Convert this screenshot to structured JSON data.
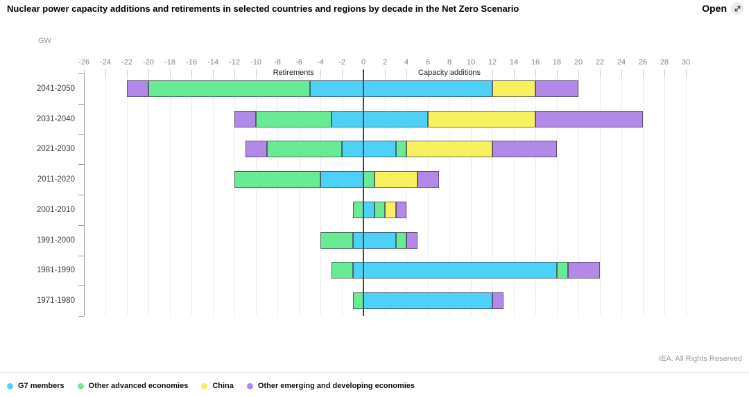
{
  "header": {
    "open_label": "Open"
  },
  "footer": {
    "copyright": "IEA. All Rights Reserved"
  },
  "chart_data": {
    "type": "bar",
    "variant": "diverging-stacked-horizontal",
    "title": "Nuclear power capacity additions and retirements in selected countries and regions by decade in the Net Zero Scenario",
    "unit": "GW",
    "xlim": [
      -26,
      30
    ],
    "x_step": 2,
    "grid": true,
    "legend_position": "bottom",
    "annotations": {
      "unit": "GW",
      "left": "Retirements",
      "right": "Capacity additions"
    },
    "categories": [
      "2041-2050",
      "2031-2040",
      "2021-2030",
      "2011-2020",
      "2001-2010",
      "1991-2000",
      "1981-1990",
      "1971-1980"
    ],
    "series": [
      {
        "name": "G7 members",
        "color": "#4DD1F7",
        "retirements": [
          -5,
          -3,
          -2,
          -4,
          0,
          -1,
          -1,
          0
        ],
        "additions": [
          12,
          6,
          3,
          0,
          1,
          3,
          18,
          12
        ]
      },
      {
        "name": "Other advanced economies",
        "color": "#69EB96",
        "retirements": [
          -15,
          -7,
          -7,
          -8,
          -1,
          -3,
          -2,
          -1
        ],
        "additions": [
          0,
          0,
          1,
          1,
          1,
          1,
          1,
          0
        ]
      },
      {
        "name": "China",
        "color": "#F7F05F",
        "retirements": [
          0,
          0,
          0,
          0,
          0,
          0,
          0,
          0
        ],
        "additions": [
          4,
          10,
          8,
          4,
          1,
          0,
          0,
          0
        ]
      },
      {
        "name": "Other emerging and developing economies",
        "color": "#B289E8",
        "retirements": [
          -2,
          -2,
          -2,
          0,
          0,
          0,
          0,
          0
        ],
        "additions": [
          4,
          10,
          6,
          2,
          1,
          1,
          3,
          1
        ]
      }
    ]
  }
}
